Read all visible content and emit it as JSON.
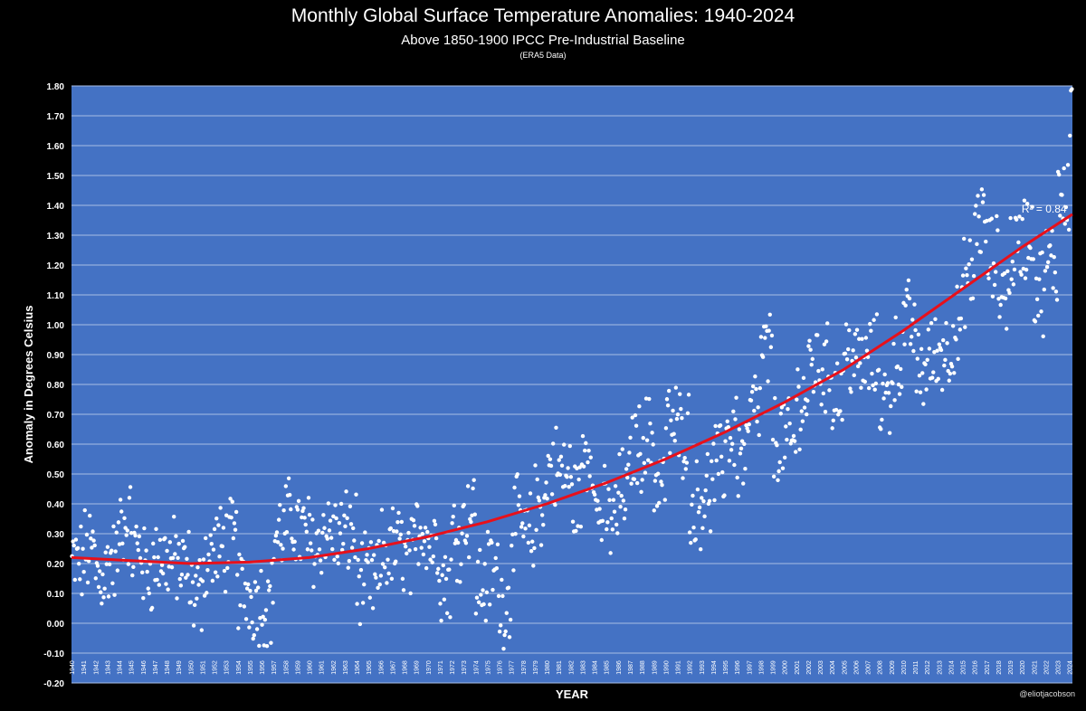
{
  "chart_data": {
    "type": "scatter",
    "title": "Monthly Global Surface Temperature Anomalies: 1940-2024",
    "subtitle": "Above 1850-1900 IPCC Pre-Industrial Baseline",
    "note": "(ERA5 Data)",
    "xlabel": "YEAR",
    "ylabel": "Anomaly in Degrees Celsius",
    "ylim": [
      -0.2,
      1.8
    ],
    "ytick_step": 0.1,
    "x_start": 1940,
    "x_end": 2024.25,
    "x_ticks": [
      "1940",
      "1941",
      "1942",
      "1943",
      "1944",
      "1945",
      "1946",
      "1947",
      "1948",
      "1949",
      "1950",
      "1951",
      "1952",
      "1953",
      "1954",
      "1955",
      "1956",
      "1957",
      "1958",
      "1959",
      "1960",
      "1961",
      "1962",
      "1963",
      "1964",
      "1965",
      "1966",
      "1967",
      "1968",
      "1969",
      "1970",
      "1971",
      "1972",
      "1973",
      "1974",
      "1975",
      "1976",
      "1977",
      "1978",
      "1979",
      "1980",
      "1981",
      "1982",
      "1983",
      "1984",
      "1985",
      "1986",
      "1987",
      "1988",
      "1989",
      "1990",
      "1991",
      "1992",
      "1993",
      "1994",
      "1995",
      "1996",
      "1997",
      "1998",
      "1999",
      "2000",
      "2001",
      "2002",
      "2003",
      "2004",
      "2005",
      "2006",
      "2007",
      "2008",
      "2009",
      "2010",
      "2011",
      "2012",
      "2013",
      "2014",
      "2015",
      "2016",
      "2017",
      "2018",
      "2019",
      "2020",
      "2021",
      "2022",
      "2023",
      "2024"
    ],
    "series": [
      {
        "name": "Monthly anomalies",
        "kind": "scatter",
        "color": "#ffffff",
        "annual_means": [
          {
            "year": 1940,
            "value": 0.2
          },
          {
            "year": 1941,
            "value": 0.24
          },
          {
            "year": 1942,
            "value": 0.16
          },
          {
            "year": 1943,
            "value": 0.21
          },
          {
            "year": 1944,
            "value": 0.34
          },
          {
            "year": 1945,
            "value": 0.25
          },
          {
            "year": 1946,
            "value": 0.18
          },
          {
            "year": 1947,
            "value": 0.22
          },
          {
            "year": 1948,
            "value": 0.21
          },
          {
            "year": 1949,
            "value": 0.18
          },
          {
            "year": 1950,
            "value": 0.1
          },
          {
            "year": 1951,
            "value": 0.22
          },
          {
            "year": 1952,
            "value": 0.25
          },
          {
            "year": 1953,
            "value": 0.27
          },
          {
            "year": 1954,
            "value": 0.11
          },
          {
            "year": 1955,
            "value": 0.08
          },
          {
            "year": 1956,
            "value": 0.07
          },
          {
            "year": 1957,
            "value": 0.3
          },
          {
            "year": 1958,
            "value": 0.34
          },
          {
            "year": 1959,
            "value": 0.3
          },
          {
            "year": 1960,
            "value": 0.26
          },
          {
            "year": 1961,
            "value": 0.31
          },
          {
            "year": 1962,
            "value": 0.29
          },
          {
            "year": 1963,
            "value": 0.3
          },
          {
            "year": 1964,
            "value": 0.14
          },
          {
            "year": 1965,
            "value": 0.14
          },
          {
            "year": 1966,
            "value": 0.24
          },
          {
            "year": 1967,
            "value": 0.25
          },
          {
            "year": 1968,
            "value": 0.21
          },
          {
            "year": 1969,
            "value": 0.33
          },
          {
            "year": 1970,
            "value": 0.27
          },
          {
            "year": 1971,
            "value": 0.15
          },
          {
            "year": 1972,
            "value": 0.3
          },
          {
            "year": 1973,
            "value": 0.37
          },
          {
            "year": 1974,
            "value": 0.13
          },
          {
            "year": 1975,
            "value": 0.17
          },
          {
            "year": 1976,
            "value": 0.07
          },
          {
            "year": 1977,
            "value": 0.34
          },
          {
            "year": 1978,
            "value": 0.29
          },
          {
            "year": 1979,
            "value": 0.4
          },
          {
            "year": 1980,
            "value": 0.52
          },
          {
            "year": 1981,
            "value": 0.5
          },
          {
            "year": 1982,
            "value": 0.42
          },
          {
            "year": 1983,
            "value": 0.58
          },
          {
            "year": 1984,
            "value": 0.37
          },
          {
            "year": 1985,
            "value": 0.35
          },
          {
            "year": 1986,
            "value": 0.44
          },
          {
            "year": 1987,
            "value": 0.59
          },
          {
            "year": 1988,
            "value": 0.62
          },
          {
            "year": 1989,
            "value": 0.48
          },
          {
            "year": 1990,
            "value": 0.66
          },
          {
            "year": 1991,
            "value": 0.64
          },
          {
            "year": 1992,
            "value": 0.4
          },
          {
            "year": 1993,
            "value": 0.44
          },
          {
            "year": 1994,
            "value": 0.52
          },
          {
            "year": 1995,
            "value": 0.64
          },
          {
            "year": 1996,
            "value": 0.56
          },
          {
            "year": 1997,
            "value": 0.71
          },
          {
            "year": 1998,
            "value": 0.9
          },
          {
            "year": 1999,
            "value": 0.62
          },
          {
            "year": 2000,
            "value": 0.6
          },
          {
            "year": 2001,
            "value": 0.75
          },
          {
            "year": 2002,
            "value": 0.86
          },
          {
            "year": 2003,
            "value": 0.85
          },
          {
            "year": 2004,
            "value": 0.78
          },
          {
            "year": 2005,
            "value": 0.9
          },
          {
            "year": 2006,
            "value": 0.86
          },
          {
            "year": 2007,
            "value": 0.88
          },
          {
            "year": 2008,
            "value": 0.75
          },
          {
            "year": 2009,
            "value": 0.89
          },
          {
            "year": 2010,
            "value": 1.0
          },
          {
            "year": 2011,
            "value": 0.85
          },
          {
            "year": 2012,
            "value": 0.89
          },
          {
            "year": 2013,
            "value": 0.92
          },
          {
            "year": 2014,
            "value": 0.98
          },
          {
            "year": 2015,
            "value": 1.15
          },
          {
            "year": 2016,
            "value": 1.35
          },
          {
            "year": 2017,
            "value": 1.22
          },
          {
            "year": 2018,
            "value": 1.12
          },
          {
            "year": 2019,
            "value": 1.25
          },
          {
            "year": 2020,
            "value": 1.3
          },
          {
            "year": 2021,
            "value": 1.12
          },
          {
            "year": 2022,
            "value": 1.2
          },
          {
            "year": 2023,
            "value": 1.45
          },
          {
            "year": 2024,
            "value": 1.72
          }
        ]
      },
      {
        "name": "Polynomial trend",
        "kind": "line",
        "color": "#e8101a",
        "points": [
          {
            "x": 1940,
            "y": 0.22
          },
          {
            "x": 1945,
            "y": 0.21
          },
          {
            "x": 1950,
            "y": 0.2
          },
          {
            "x": 1955,
            "y": 0.205
          },
          {
            "x": 1960,
            "y": 0.22
          },
          {
            "x": 1965,
            "y": 0.25
          },
          {
            "x": 1970,
            "y": 0.29
          },
          {
            "x": 1975,
            "y": 0.34
          },
          {
            "x": 1980,
            "y": 0.4
          },
          {
            "x": 1985,
            "y": 0.47
          },
          {
            "x": 1990,
            "y": 0.55
          },
          {
            "x": 1995,
            "y": 0.64
          },
          {
            "x": 2000,
            "y": 0.74
          },
          {
            "x": 2005,
            "y": 0.85
          },
          {
            "x": 2010,
            "y": 0.98
          },
          {
            "x": 2015,
            "y": 1.12
          },
          {
            "x": 2020,
            "y": 1.26
          },
          {
            "x": 2024.25,
            "y": 1.37
          }
        ]
      }
    ],
    "annotations": [
      {
        "text": "R² = 0.84",
        "x": 2021.5,
        "y": 1.37
      }
    ]
  },
  "credit": "@eliotjacobson",
  "colors": {
    "background": "#000000",
    "plot_area": "#4472c4",
    "gridline": "#a9bde3",
    "points": "#ffffff",
    "trend": "#e8101a"
  }
}
